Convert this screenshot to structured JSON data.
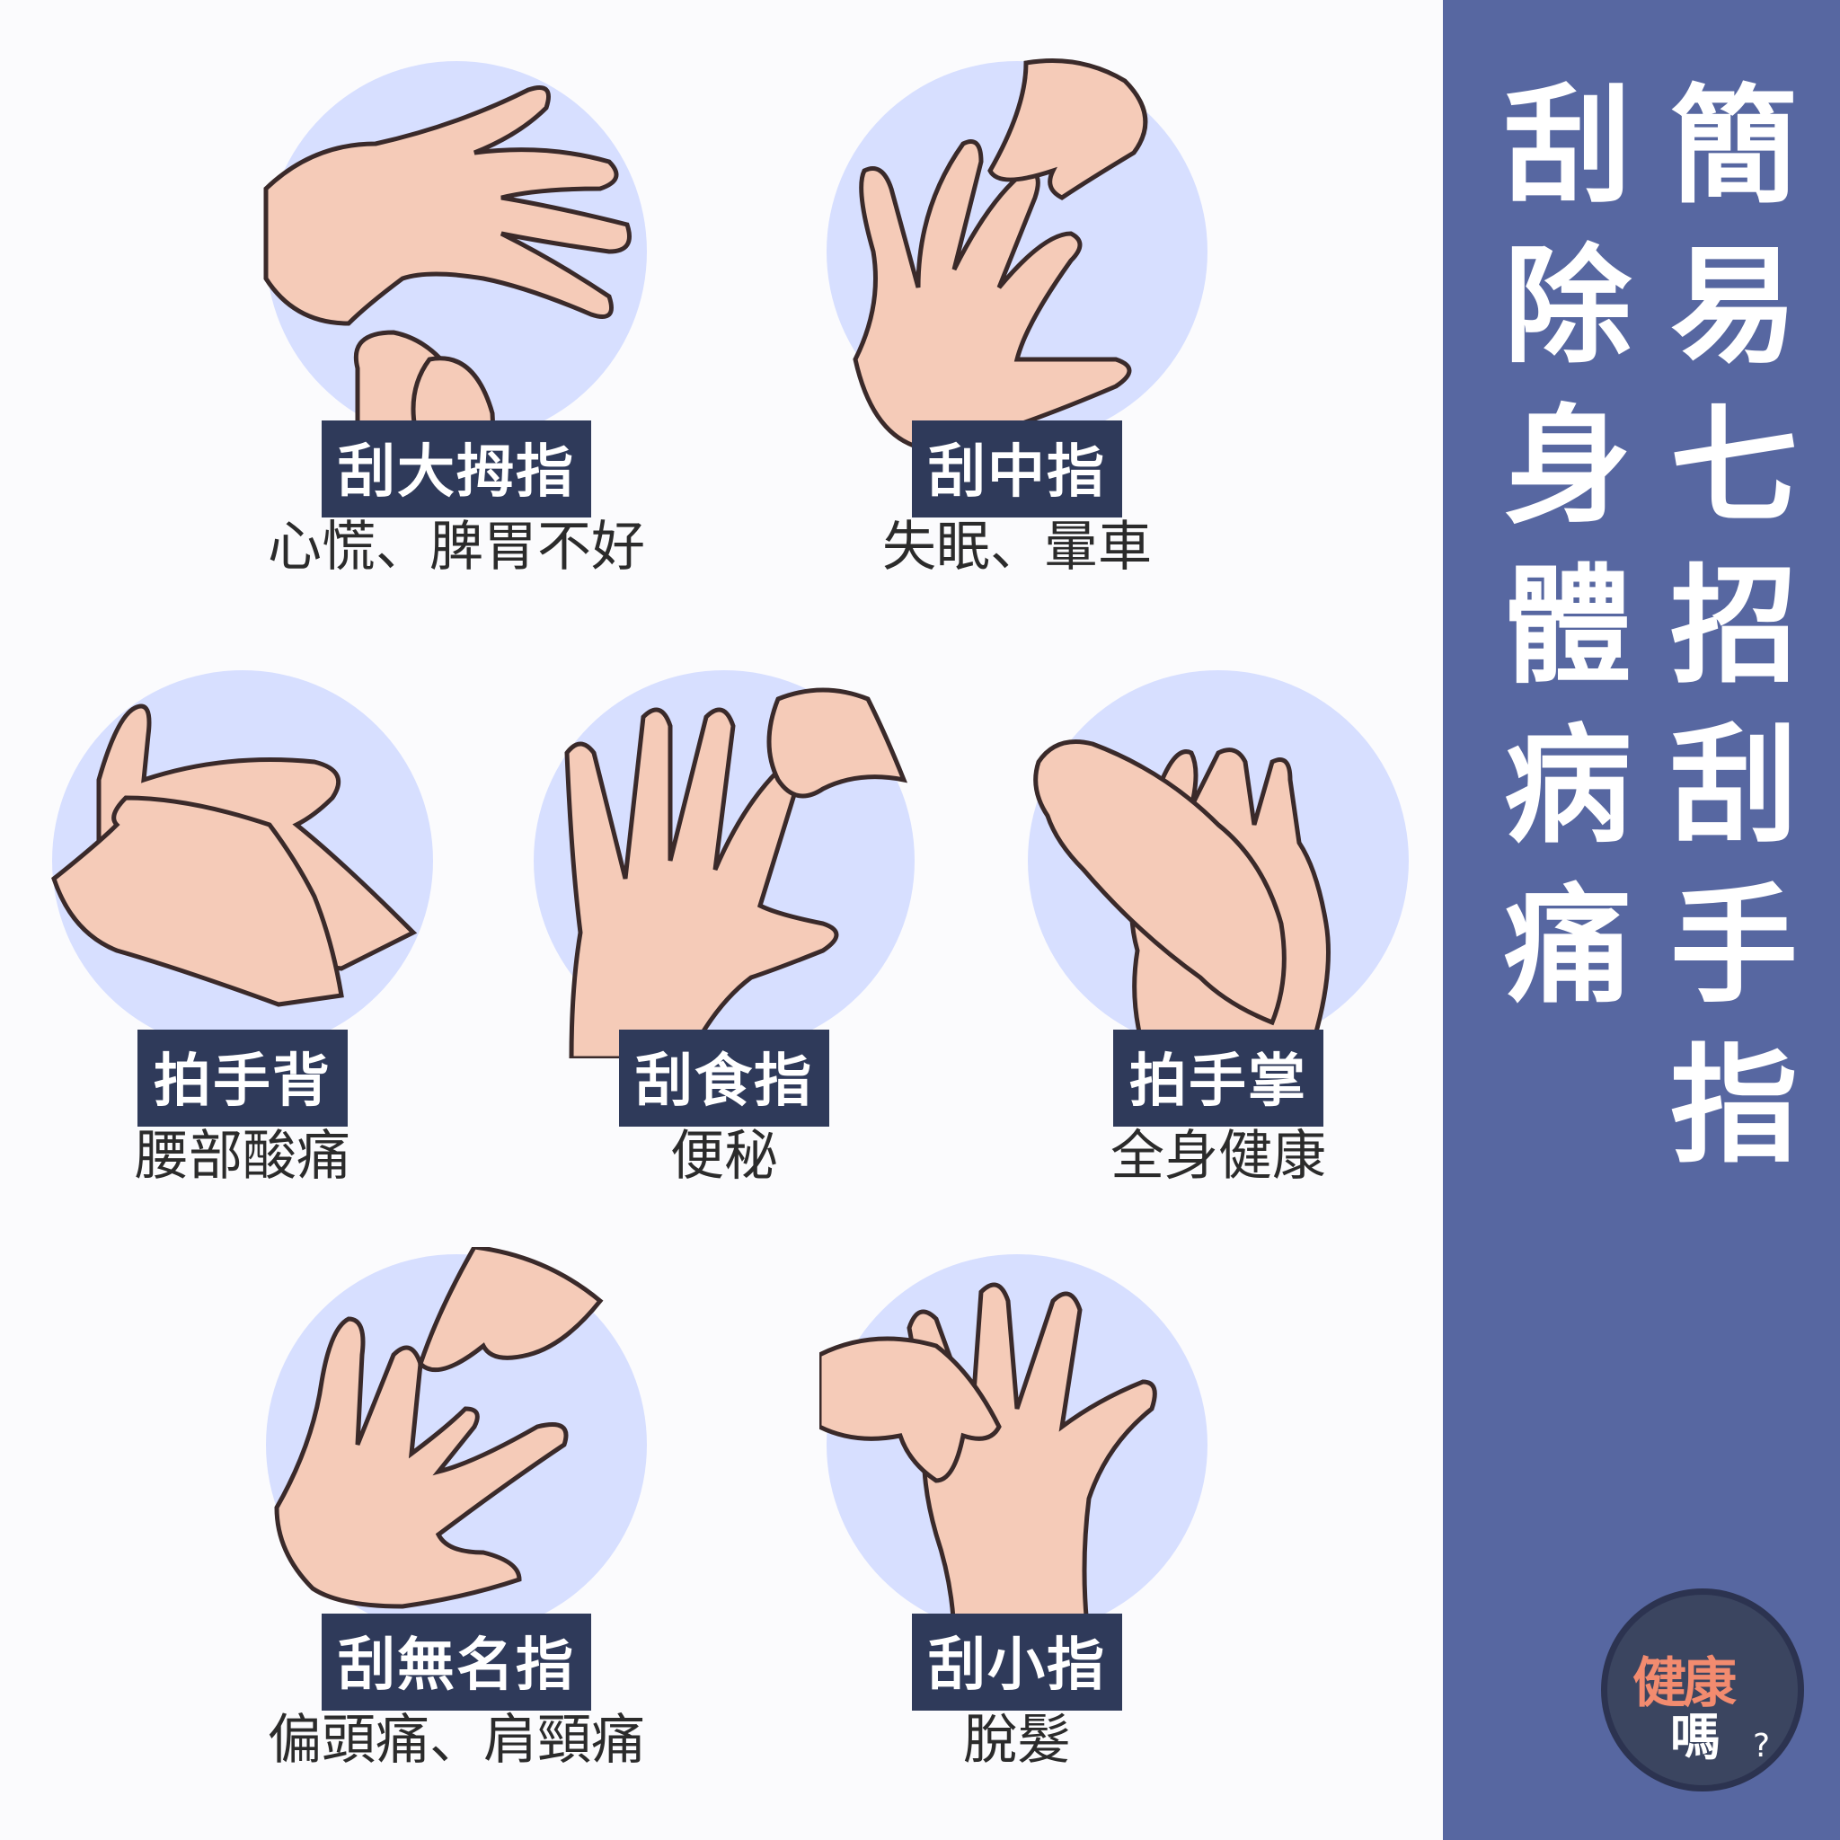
{
  "title": {
    "right_column": [
      "簡",
      "易",
      "七",
      "招",
      "刮",
      "手",
      "指"
    ],
    "left_column": [
      "刮",
      "除",
      "身",
      "體",
      "病",
      "痛"
    ]
  },
  "techniques": [
    {
      "label": "刮大拇指",
      "effect": "心慌、脾胃不好"
    },
    {
      "label": "刮中指",
      "effect": "失眠、暈車"
    },
    {
      "label": "拍手背",
      "effect": "腰部酸痛"
    },
    {
      "label": "刮食指",
      "effect": "便秘"
    },
    {
      "label": "拍手掌",
      "effect": "全身健康"
    },
    {
      "label": "刮無名指",
      "effect": "偏頭痛、肩頸痛"
    },
    {
      "label": "刮小指",
      "effect": "脫髮"
    }
  ],
  "logo": {
    "line1": "健康",
    "line2": "嗎",
    "mark": "?"
  },
  "colors": {
    "sidebar": "#5767a1",
    "circle": "#d7dfff",
    "skin": "#f5cbb8",
    "label_bg": "#2f3a5a",
    "outline": "#3a2a2a"
  }
}
